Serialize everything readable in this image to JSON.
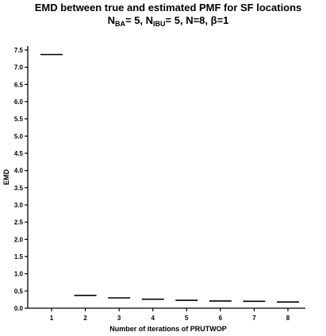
{
  "chart_data": {
    "type": "scatter",
    "marker": "horizontal-line",
    "title": "EMD between true and estimated PMF for SF locations",
    "subtitle": {
      "n_ba_main": "N",
      "n_ba_sub": "BA",
      "n_ba_rest": "= 5, ",
      "n_ibu_main": "N",
      "n_ibu_sub": "IBU",
      "n_ibu_rest": "= 5, N=8, β=1"
    },
    "xlabel": "Number of iterations of PRUTWOP",
    "ylabel": "EMD",
    "categories": [
      "1",
      "2",
      "3",
      "4",
      "5",
      "6",
      "7",
      "8"
    ],
    "values": [
      7.37,
      0.37,
      0.3,
      0.26,
      0.23,
      0.21,
      0.2,
      0.18
    ],
    "ylim": [
      0,
      7.5
    ],
    "yticks": [
      "0.0",
      "0.5",
      "1.0",
      "1.5",
      "2.0",
      "2.5",
      "3.0",
      "3.5",
      "4.0",
      "4.5",
      "5.0",
      "5.5",
      "6.0",
      "6.5",
      "7.0",
      "7.5"
    ],
    "grid": false,
    "legend": "none",
    "color": "#000000"
  }
}
